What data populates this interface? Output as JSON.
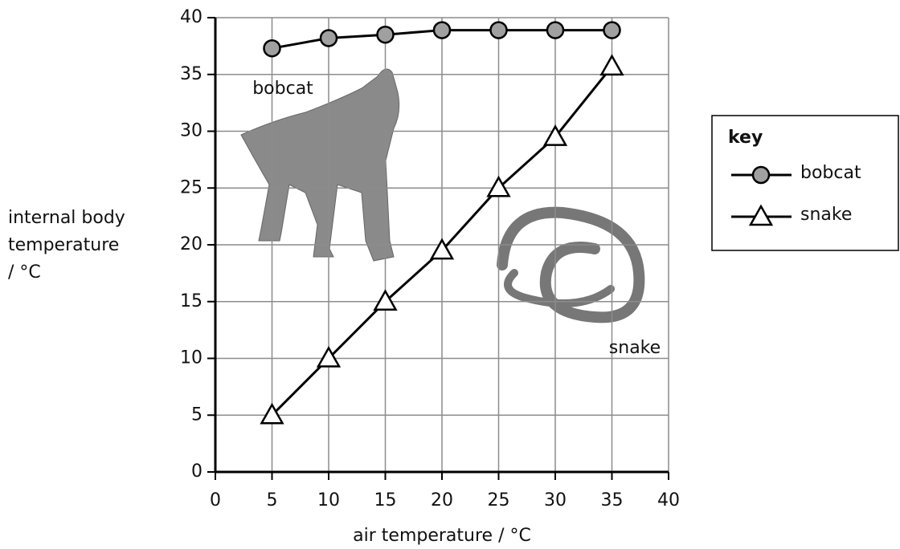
{
  "chart_data": {
    "type": "line",
    "x_label": "air temperature / °C",
    "y_label": [
      "internal body",
      "temperature",
      "/ °C"
    ],
    "x": [
      5,
      10,
      15,
      20,
      25,
      30,
      35
    ],
    "series": [
      {
        "name": "bobcat",
        "color": "#000000",
        "marker": "circle",
        "marker_color": "#a0a0a0",
        "values": [
          37.3,
          38.2,
          38.5,
          38.9,
          38.9,
          38.9,
          38.9
        ]
      },
      {
        "name": "snake",
        "color": "#000000",
        "marker": "triangle",
        "marker_color": "#ffffff",
        "values": [
          5,
          10,
          15,
          19.5,
          25,
          29.5,
          35.7
        ]
      }
    ],
    "xlim": [
      0,
      40
    ],
    "xticks": [
      0,
      5,
      10,
      15,
      20,
      25,
      30,
      35,
      40
    ],
    "ylim": [
      0,
      40
    ],
    "yticks": [
      0,
      5,
      10,
      15,
      20,
      25,
      30,
      35,
      40
    ],
    "grid": true,
    "legend_title": "key",
    "annotations": [
      "bobcat",
      "snake"
    ]
  }
}
